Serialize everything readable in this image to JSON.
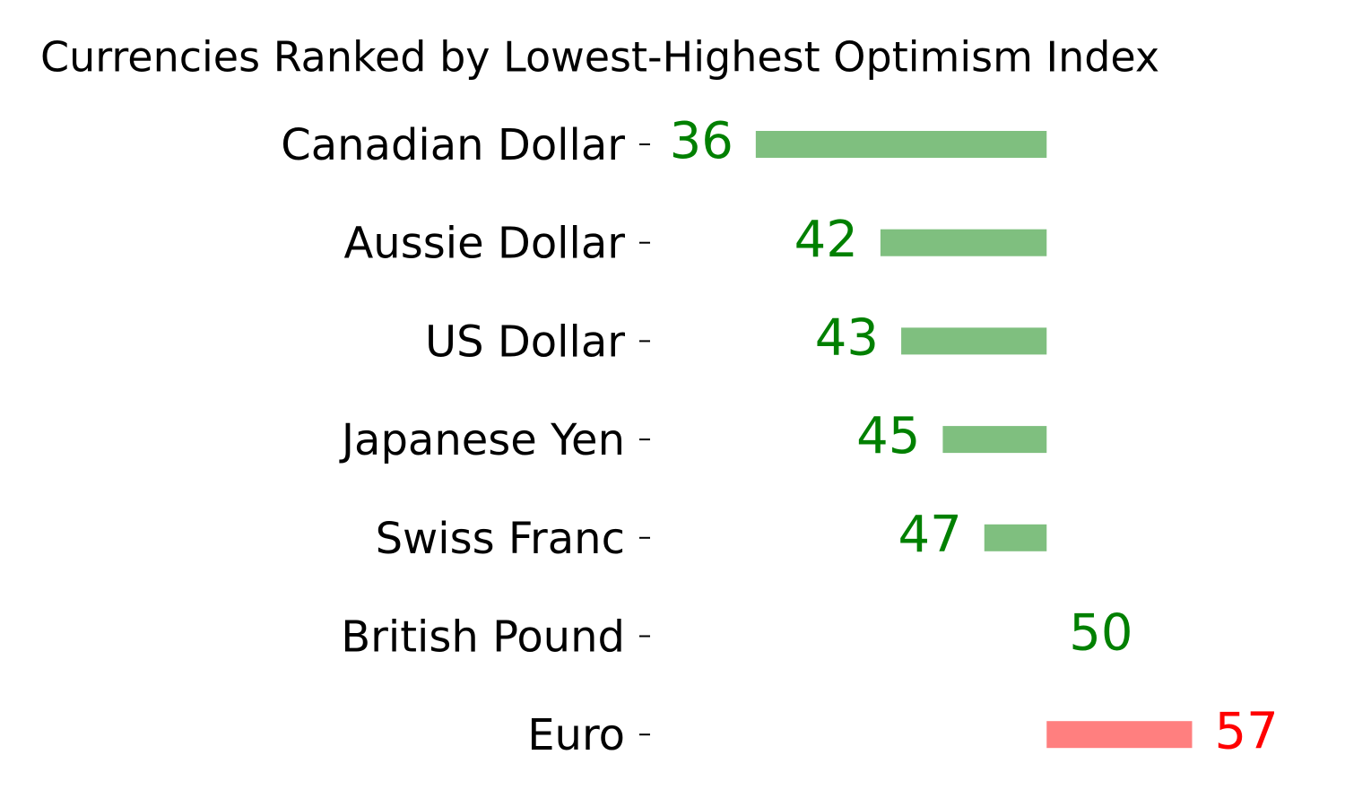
{
  "chart_data": {
    "type": "diverging-bar",
    "title": "Currencies Ranked by Lowest-Highest Optimism Index",
    "categories": [
      "Canadian Dollar",
      "Aussie Dollar",
      "US Dollar",
      "Japanese Yen",
      "Swiss Franc",
      "British Pound",
      "Euro"
    ],
    "values": [
      36,
      42,
      43,
      45,
      47,
      50,
      57
    ],
    "colors": [
      "#008000",
      "#008000",
      "#008000",
      "#008000",
      "#008000",
      "#008000",
      "#ff0000"
    ],
    "baseline": 50,
    "xlim": [
      31,
      60
    ]
  }
}
